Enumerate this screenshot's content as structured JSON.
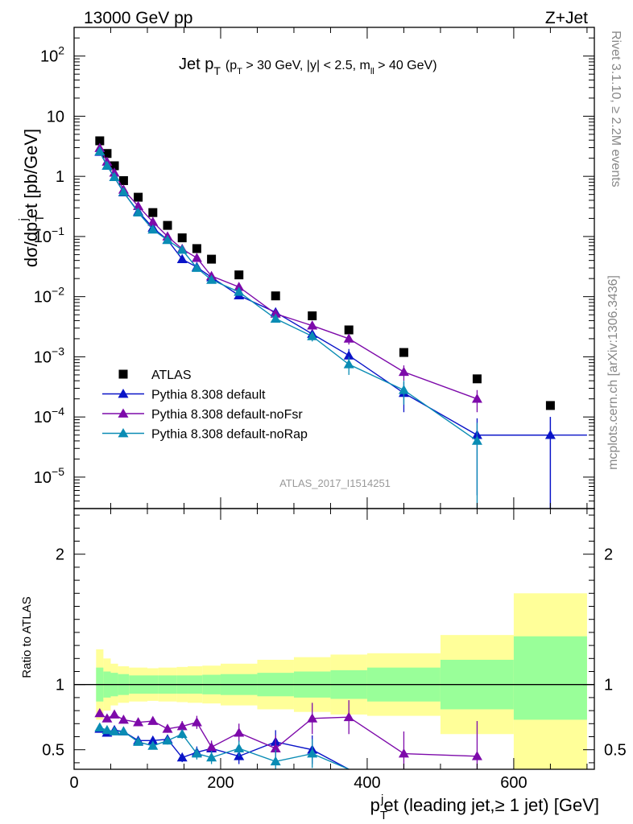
{
  "header": {
    "left": "13000 GeV pp",
    "right": "Z+Jet"
  },
  "side_labels": {
    "rivet": "Rivet 3.1.10, ≥ 2.2M events",
    "mcplots": "mcplots.cern.ch [arXiv:1306.3436]"
  },
  "analysis_id": "ATLAS_2017_I1514251",
  "colors": {
    "atlas": "#000000",
    "default": "#0a14c8",
    "noFsr": "#7d0aaa",
    "noRap": "#0a8cb4",
    "band_inner": "#99ff99",
    "band_outer": "#ffff99"
  },
  "chart_data": [
    {
      "type": "scatter",
      "panel": "main",
      "title": "Jet pT (pT > 30 GeV, |y| < 2.5, mll > 40 GeV)",
      "title_parts": {
        "main": "Jet p",
        "main_sub": "T",
        "p1": "(p",
        "p1_sub": "T",
        "p2": " > 30 GeV, |y| < 2.5, m",
        "p2_sub": "ll",
        "p3": " > 40 GeV)"
      },
      "ylabel": "dσ/dp_T^jet [pb/GeV]",
      "ylabel_parts": {
        "a": "dσ/dp",
        "a_sub": "T",
        "a_sup": "j",
        "b": "et [pb/GeV]"
      },
      "yscale": "log",
      "ylim": [
        3e-06,
        300
      ],
      "xlim": [
        0,
        710
      ],
      "y_ticks": [
        {
          "v": 100,
          "base": "10",
          "exp": "2"
        },
        {
          "v": 10,
          "base": "10",
          "exp": ""
        },
        {
          "v": 1,
          "base": "1",
          "exp": ""
        },
        {
          "v": 0.1,
          "base": "10",
          "exp": "−1"
        },
        {
          "v": 0.01,
          "base": "10",
          "exp": "−2"
        },
        {
          "v": 0.001,
          "base": "10",
          "exp": "−3"
        },
        {
          "v": 0.0001,
          "base": "10",
          "exp": "−4"
        },
        {
          "v": 1e-05,
          "base": "10",
          "exp": "−5"
        }
      ],
      "legend_position": "bottom-left",
      "series": [
        {
          "name": "ATLAS",
          "key": "atlas",
          "marker": "square",
          "x": [
            35,
            45,
            55,
            67.5,
            87.5,
            107.5,
            127.5,
            147.5,
            167.5,
            187.5,
            225,
            275,
            325,
            375,
            450,
            550,
            650
          ],
          "y": [
            3.9,
            2.4,
            1.5,
            0.85,
            0.45,
            0.25,
            0.153,
            0.095,
            0.063,
            0.042,
            0.023,
            0.0103,
            0.0048,
            0.0028,
            0.00118,
            0.00043,
            0.000155
          ]
        },
        {
          "name": "Pythia 8.308 default",
          "key": "default",
          "marker": "triangle",
          "x": [
            35,
            45,
            55,
            67.5,
            87.5,
            107.5,
            127.5,
            147.5,
            167.5,
            187.5,
            225,
            275,
            325,
            375,
            450,
            550,
            650
          ],
          "y": [
            2.55,
            1.5,
            0.97,
            0.54,
            0.26,
            0.14,
            0.088,
            0.042,
            0.031,
            0.021,
            0.0105,
            0.0055,
            0.0024,
            0.00105,
            0.00025,
            5e-05,
            5e-05
          ],
          "yerr": [
            0.05,
            0.03,
            0.02,
            0.01,
            0.005,
            0.003,
            0.002,
            0.002,
            0.0015,
            0.001,
            0.0006,
            0.0005,
            0.0004,
            0.0003,
            0.00013,
            4.5e-05,
            5e-05
          ]
        },
        {
          "name": "Pythia 8.308 default-noFsr",
          "key": "noFsr",
          "marker": "triangle",
          "x": [
            35,
            45,
            55,
            67.5,
            87.5,
            107.5,
            127.5,
            147.5,
            167.5,
            187.5,
            225,
            275,
            325,
            375,
            450,
            550,
            650
          ],
          "y": [
            2.95,
            1.75,
            1.15,
            0.6,
            0.32,
            0.175,
            0.1,
            0.062,
            0.044,
            0.022,
            0.0145,
            0.0052,
            0.0033,
            0.002,
            0.00056,
            0.0002,
            null
          ],
          "yerr": [
            0.05,
            0.03,
            0.02,
            0.01,
            0.006,
            0.004,
            0.003,
            0.003,
            0.002,
            0.0012,
            0.0008,
            0.0006,
            0.0006,
            0.0004,
            0.00016,
            8e-05,
            null
          ]
        },
        {
          "name": "Pythia 8.308 default-noRap",
          "key": "noRap",
          "marker": "triangle",
          "x": [
            35,
            45,
            55,
            67.5,
            87.5,
            107.5,
            127.5,
            147.5,
            167.5,
            187.5,
            225,
            275,
            325,
            375,
            450,
            550
          ],
          "y": [
            2.6,
            1.5,
            0.97,
            0.55,
            0.25,
            0.13,
            0.087,
            0.06,
            0.03,
            0.019,
            0.012,
            0.0043,
            0.0022,
            0.00075,
            0.00028,
            4e-05
          ],
          "yerr": [
            0.05,
            0.03,
            0.02,
            0.01,
            0.005,
            0.003,
            0.002,
            0.003,
            0.0015,
            0.001,
            0.0007,
            0.0004,
            0.0004,
            0.00025,
            0.00012,
            4e-05
          ]
        }
      ]
    },
    {
      "type": "line",
      "panel": "ratio",
      "ylabel": "Ratio to ATLAS",
      "xlabel": "p_T^jet (leading jet, ≥ 1 jet) [GeV]",
      "xlabel_parts": {
        "a": "p",
        "a_sub": "T",
        "a_sup": "j",
        "b": "et (leading jet,",
        "c": "≥ 1 jet) [GeV]"
      },
      "ylim": [
        0.35,
        2.35
      ],
      "xlim": [
        0,
        710
      ],
      "y_ticks": [
        0.5,
        1,
        2
      ],
      "x_ticks": [
        0,
        200,
        400,
        600
      ],
      "band_bins": [
        {
          "lo": 30,
          "hi": 40,
          "in_lo": 0.87,
          "in_hi": 1.13,
          "out_lo": 0.73,
          "out_hi": 1.27
        },
        {
          "lo": 40,
          "hi": 50,
          "in_lo": 0.9,
          "in_hi": 1.1,
          "out_lo": 0.8,
          "out_hi": 1.2
        },
        {
          "lo": 50,
          "hi": 60,
          "in_lo": 0.91,
          "in_hi": 1.09,
          "out_lo": 0.84,
          "out_hi": 1.16
        },
        {
          "lo": 60,
          "hi": 75,
          "in_lo": 0.92,
          "in_hi": 1.08,
          "out_lo": 0.86,
          "out_hi": 1.14
        },
        {
          "lo": 75,
          "hi": 100,
          "in_lo": 0.93,
          "in_hi": 1.07,
          "out_lo": 0.87,
          "out_hi": 1.13
        },
        {
          "lo": 100,
          "hi": 115,
          "in_lo": 0.93,
          "in_hi": 1.07,
          "out_lo": 0.875,
          "out_hi": 1.125
        },
        {
          "lo": 115,
          "hi": 140,
          "in_lo": 0.93,
          "in_hi": 1.07,
          "out_lo": 0.87,
          "out_hi": 1.13
        },
        {
          "lo": 140,
          "hi": 155,
          "in_lo": 0.93,
          "in_hi": 1.07,
          "out_lo": 0.865,
          "out_hi": 1.135
        },
        {
          "lo": 155,
          "hi": 175,
          "in_lo": 0.93,
          "in_hi": 1.07,
          "out_lo": 0.86,
          "out_hi": 1.14
        },
        {
          "lo": 175,
          "hi": 200,
          "in_lo": 0.925,
          "in_hi": 1.075,
          "out_lo": 0.855,
          "out_hi": 1.145
        },
        {
          "lo": 200,
          "hi": 250,
          "in_lo": 0.92,
          "in_hi": 1.08,
          "out_lo": 0.84,
          "out_hi": 1.16
        },
        {
          "lo": 250,
          "hi": 300,
          "in_lo": 0.91,
          "in_hi": 1.09,
          "out_lo": 0.81,
          "out_hi": 1.19
        },
        {
          "lo": 300,
          "hi": 350,
          "in_lo": 0.9,
          "in_hi": 1.1,
          "out_lo": 0.79,
          "out_hi": 1.21
        },
        {
          "lo": 350,
          "hi": 400,
          "in_lo": 0.89,
          "in_hi": 1.11,
          "out_lo": 0.77,
          "out_hi": 1.23
        },
        {
          "lo": 400,
          "hi": 500,
          "in_lo": 0.87,
          "in_hi": 1.13,
          "out_lo": 0.76,
          "out_hi": 1.24
        },
        {
          "lo": 500,
          "hi": 600,
          "in_lo": 0.81,
          "in_hi": 1.19,
          "out_lo": 0.62,
          "out_hi": 1.38
        },
        {
          "lo": 600,
          "hi": 700,
          "in_lo": 0.73,
          "in_hi": 1.37,
          "out_lo": 0.3,
          "out_hi": 1.7
        }
      ],
      "series": [
        {
          "name": "Pythia 8.308 default",
          "key": "default",
          "x": [
            35,
            45,
            55,
            67.5,
            87.5,
            107.5,
            127.5,
            147.5,
            167.5,
            187.5,
            225,
            275,
            325,
            375
          ],
          "y": [
            0.66,
            0.63,
            0.65,
            0.64,
            0.57,
            0.57,
            0.58,
            0.44,
            0.48,
            0.51,
            0.45,
            0.56,
            0.5,
            0.3
          ],
          "yerr": [
            0.01,
            0.01,
            0.012,
            0.015,
            0.02,
            0.025,
            0.03,
            0.035,
            0.045,
            0.05,
            0.06,
            0.09,
            0.11,
            0.12
          ]
        },
        {
          "name": "Pythia 8.308 default-noFsr",
          "key": "noFsr",
          "x": [
            35,
            45,
            55,
            67.5,
            87.5,
            107.5,
            127.5,
            147.5,
            167.5,
            187.5,
            225,
            275,
            325,
            375,
            450,
            550
          ],
          "y": [
            0.78,
            0.74,
            0.77,
            0.73,
            0.71,
            0.72,
            0.66,
            0.68,
            0.71,
            0.52,
            0.63,
            0.51,
            0.74,
            0.75,
            0.47,
            0.45
          ],
          "yerr": [
            0.012,
            0.012,
            0.014,
            0.016,
            0.02,
            0.025,
            0.03,
            0.04,
            0.05,
            0.05,
            0.07,
            0.1,
            0.12,
            0.13,
            0.17,
            0.27
          ]
        },
        {
          "name": "Pythia 8.308 default-noRap",
          "key": "noRap",
          "x": [
            35,
            45,
            55,
            67.5,
            87.5,
            107.5,
            127.5,
            147.5,
            167.5,
            187.5,
            225,
            275,
            325,
            375
          ],
          "y": [
            0.67,
            0.65,
            0.64,
            0.64,
            0.56,
            0.53,
            0.57,
            0.62,
            0.47,
            0.44,
            0.51,
            0.41,
            0.47,
            0.3
          ],
          "yerr": [
            0.01,
            0.01,
            0.012,
            0.015,
            0.02,
            0.025,
            0.03,
            0.035,
            0.045,
            0.05,
            0.06,
            0.09,
            0.11,
            0.12
          ]
        }
      ]
    }
  ]
}
